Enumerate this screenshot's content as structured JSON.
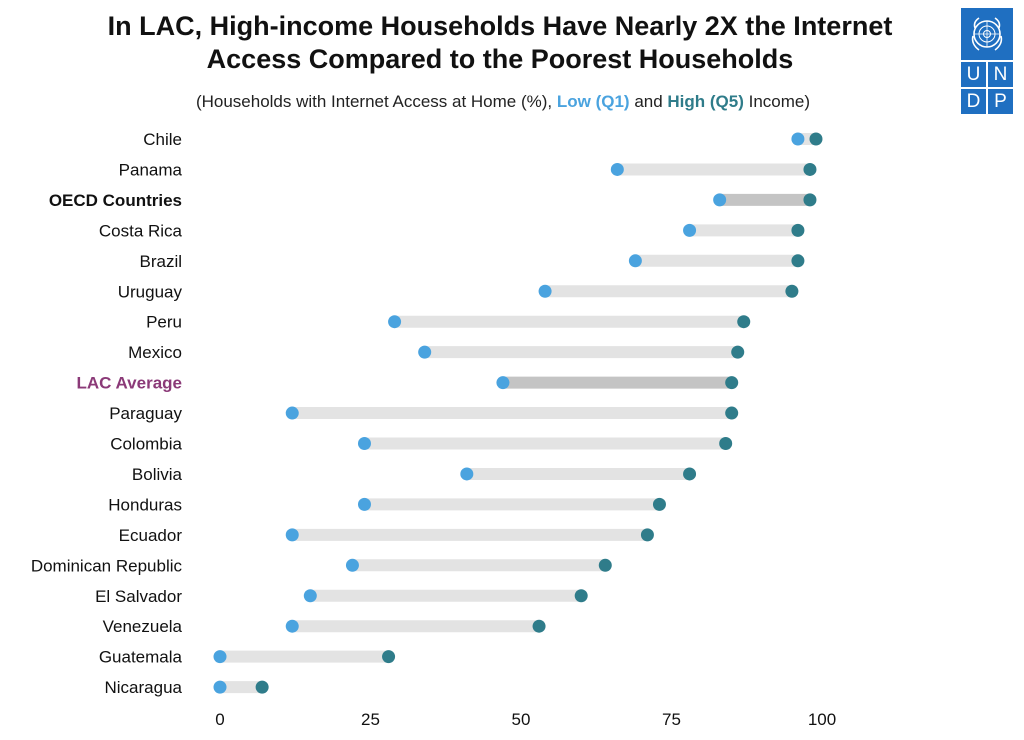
{
  "header": {
    "title_line1": "In LAC, High-income Households Have Nearly 2X the Internet",
    "title_line2": "Access Compared to the Poorest Households",
    "subtitle_prefix": "(Households with Internet Access at Home (%), ",
    "subtitle_low": "Low (Q1)",
    "subtitle_and": " and ",
    "subtitle_high": "High (Q5)",
    "subtitle_suffix": " Income)"
  },
  "logo": {
    "letters": [
      "U",
      "N",
      "D",
      "P"
    ],
    "icon": "un-emblem-icon"
  },
  "colors": {
    "low": "#4aa3df",
    "high": "#2f7c8a",
    "bar": "#e3e3e3",
    "bar_highlight": "#c4c4c4",
    "lac_label": "#8b3a78"
  },
  "chart_data": {
    "type": "dumbbell",
    "title": "In LAC, High-income Households Have Nearly 2X the Internet Access Compared to the Poorest Households",
    "subtitle": "(Households with Internet Access at Home (%), Low (Q1) and High (Q5) Income)",
    "xlim": [
      0,
      100
    ],
    "xticks": [
      0,
      25,
      50,
      75,
      100
    ],
    "grid": false,
    "series": [
      {
        "name": "Low (Q1)"
      },
      {
        "name": "High (Q5)"
      }
    ],
    "rows": [
      {
        "label": "Chile",
        "low": 96,
        "high": 99,
        "style": "normal"
      },
      {
        "label": "Panama",
        "low": 66,
        "high": 98,
        "style": "normal"
      },
      {
        "label": "OECD Countries",
        "low": 83,
        "high": 98,
        "style": "bold"
      },
      {
        "label": "Costa Rica",
        "low": 78,
        "high": 96,
        "style": "normal"
      },
      {
        "label": "Brazil",
        "low": 69,
        "high": 96,
        "style": "normal"
      },
      {
        "label": "Uruguay",
        "low": 54,
        "high": 95,
        "style": "normal"
      },
      {
        "label": "Peru",
        "low": 29,
        "high": 87,
        "style": "normal"
      },
      {
        "label": "Mexico",
        "low": 34,
        "high": 86,
        "style": "normal"
      },
      {
        "label": "LAC Average",
        "low": 47,
        "high": 85,
        "style": "lac"
      },
      {
        "label": "Paraguay",
        "low": 12,
        "high": 85,
        "style": "normal"
      },
      {
        "label": "Colombia",
        "low": 24,
        "high": 84,
        "style": "normal"
      },
      {
        "label": "Bolivia",
        "low": 41,
        "high": 78,
        "style": "normal"
      },
      {
        "label": "Honduras",
        "low": 24,
        "high": 73,
        "style": "normal"
      },
      {
        "label": "Ecuador",
        "low": 12,
        "high": 71,
        "style": "normal"
      },
      {
        "label": "Dominican Republic",
        "low": 22,
        "high": 64,
        "style": "normal"
      },
      {
        "label": "El Salvador",
        "low": 15,
        "high": 60,
        "style": "normal"
      },
      {
        "label": "Venezuela",
        "low": 12,
        "high": 53,
        "style": "normal"
      },
      {
        "label": "Guatemala",
        "low": 0,
        "high": 28,
        "style": "normal"
      },
      {
        "label": "Nicaragua",
        "low": 0,
        "high": 7,
        "style": "normal"
      }
    ]
  }
}
